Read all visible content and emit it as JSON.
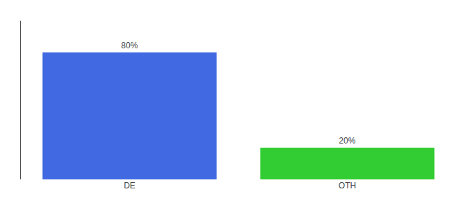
{
  "chart_data": {
    "type": "bar",
    "categories": [
      "DE",
      "OTH"
    ],
    "values": [
      80,
      20
    ],
    "value_labels": [
      "80%",
      "20%"
    ],
    "colors": [
      "#4169e1",
      "#32cd32"
    ],
    "ylim": [
      0,
      100
    ],
    "tick_labels": "x",
    "data_labels": true,
    "grid": false
  }
}
